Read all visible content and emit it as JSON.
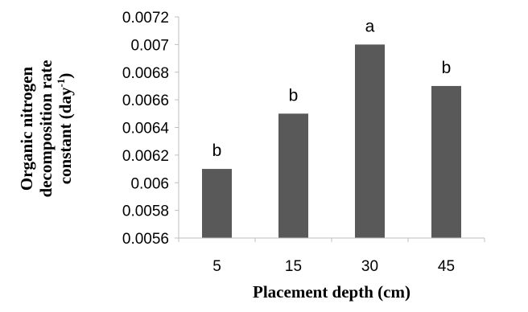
{
  "chart_data": {
    "type": "bar",
    "categories": [
      "5",
      "15",
      "30",
      "45"
    ],
    "values": [
      0.0061,
      0.0065,
      0.007,
      0.0067
    ],
    "bar_labels": [
      "b",
      "b",
      "a",
      "b"
    ],
    "xlabel": "Placement depth (cm)",
    "ylabel": {
      "line1": "Organic nitrogen",
      "line2": "decomposition rate",
      "line3_prefix": "constant (day",
      "line3_sup": "-1",
      "line3_suffix": ")"
    },
    "ylim": [
      0.0056,
      0.0072
    ],
    "yticks": [
      {
        "value": 0.0056,
        "label": "0.0056"
      },
      {
        "value": 0.0058,
        "label": "0.0058"
      },
      {
        "value": 0.006,
        "label": "0.006"
      },
      {
        "value": 0.0062,
        "label": "0.0062"
      },
      {
        "value": 0.0064,
        "label": "0.0064"
      },
      {
        "value": 0.0066,
        "label": "0.0066"
      },
      {
        "value": 0.0068,
        "label": "0.0068"
      },
      {
        "value": 0.007,
        "label": "0.007"
      },
      {
        "value": 0.0072,
        "label": "0.0072"
      }
    ],
    "grid": false,
    "legend": "none",
    "bar_color": "#595959",
    "axis_color": "#bfbfbf"
  }
}
